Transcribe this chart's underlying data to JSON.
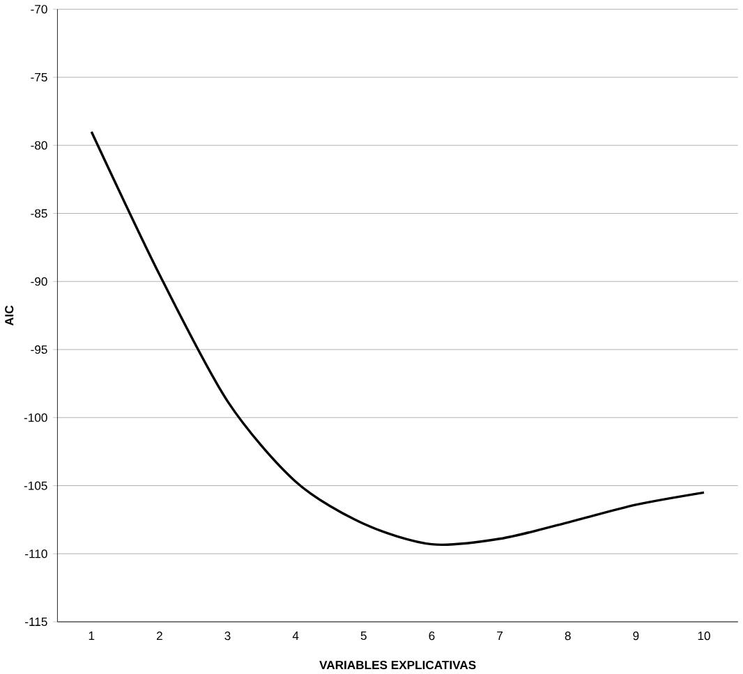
{
  "chart_data": {
    "type": "line",
    "xlabel": "VARIABLES EXPLICATIVAS",
    "ylabel": "AIC",
    "categories": [
      "1",
      "2",
      "3",
      "4",
      "5",
      "6",
      "7",
      "8",
      "9",
      "10"
    ],
    "series": [
      {
        "color": "#000000",
        "values": [
          -79,
          -89.5,
          -98.8,
          -104.7,
          -107.8,
          -109.3,
          -108.9,
          -107.7,
          -106.4,
          -105.5
        ]
      }
    ],
    "ylim": [
      -115,
      -70
    ],
    "yticks": [
      -115,
      -110,
      -105,
      -100,
      -95,
      -90,
      -85,
      -80,
      -75,
      -70
    ],
    "grid": "y",
    "marker": "none",
    "line_style": "solid"
  }
}
